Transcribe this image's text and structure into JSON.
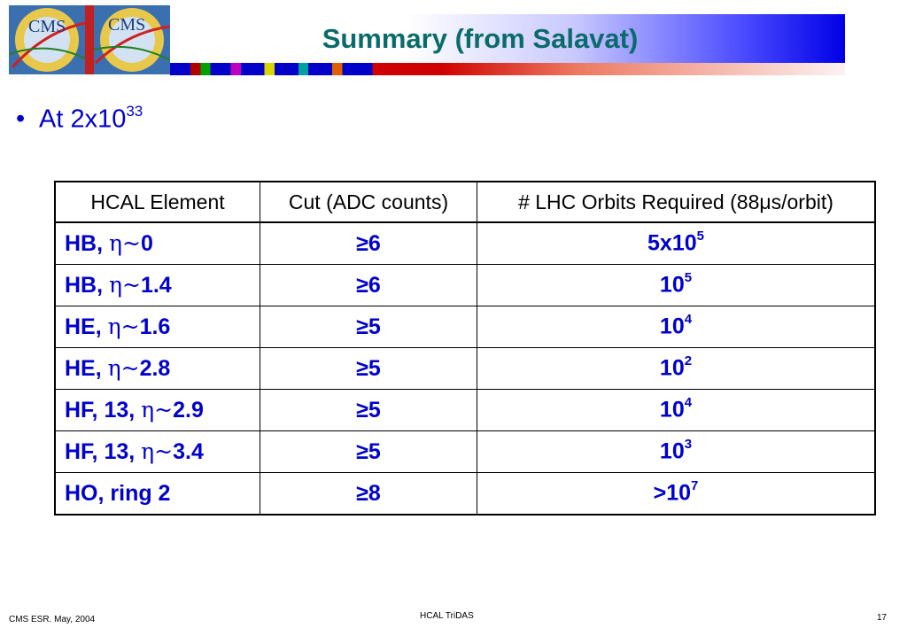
{
  "header": {
    "title": "Summary (from Salavat)",
    "logo_text": "CMS",
    "logo_text_2": "CMS"
  },
  "bullet": {
    "text_base": "At 2x10",
    "text_exponent": "33"
  },
  "table": {
    "headers": [
      "HCAL Element",
      "Cut (ADC counts)",
      "# LHC Orbits Required (88μs/orbit)"
    ],
    "rows": [
      {
        "element_prefix": "HB, ",
        "eta": "η~",
        "element_value": "0",
        "cut": "≥6",
        "orbits_base": "5x10",
        "orbits_exp": "5"
      },
      {
        "element_prefix": "HB, ",
        "eta": "η~",
        "element_value": "1.4",
        "cut": "≥6",
        "orbits_base": "10",
        "orbits_exp": "5"
      },
      {
        "element_prefix": "HE, ",
        "eta": "η~",
        "element_value": "1.6",
        "cut": "≥5",
        "orbits_base": "10",
        "orbits_exp": "4"
      },
      {
        "element_prefix": "HE, ",
        "eta": "η~",
        "element_value": "2.8",
        "cut": "≥5",
        "orbits_base": "10",
        "orbits_exp": "2"
      },
      {
        "element_prefix": "HF, 13, ",
        "eta": "η~",
        "element_value": "2.9",
        "cut": "≥5",
        "orbits_base": "10",
        "orbits_exp": "4"
      },
      {
        "element_prefix": "HF, 13, ",
        "eta": "η~",
        "element_value": "3.4",
        "cut": "≥5",
        "orbits_base": "10",
        "orbits_exp": "3"
      },
      {
        "element_prefix": "HO, ring 2",
        "eta": "",
        "element_value": "",
        "cut": "≥8",
        "orbits_base": ">10",
        "orbits_exp": "7"
      }
    ]
  },
  "footer": {
    "left": "CMS ESR. May, 2004",
    "center": "HCAL TriDAS",
    "page_number": "17"
  },
  "colors": {
    "title": "#0b6b6b",
    "body_text": "#0000cc",
    "band_blue": "#0000e6"
  }
}
